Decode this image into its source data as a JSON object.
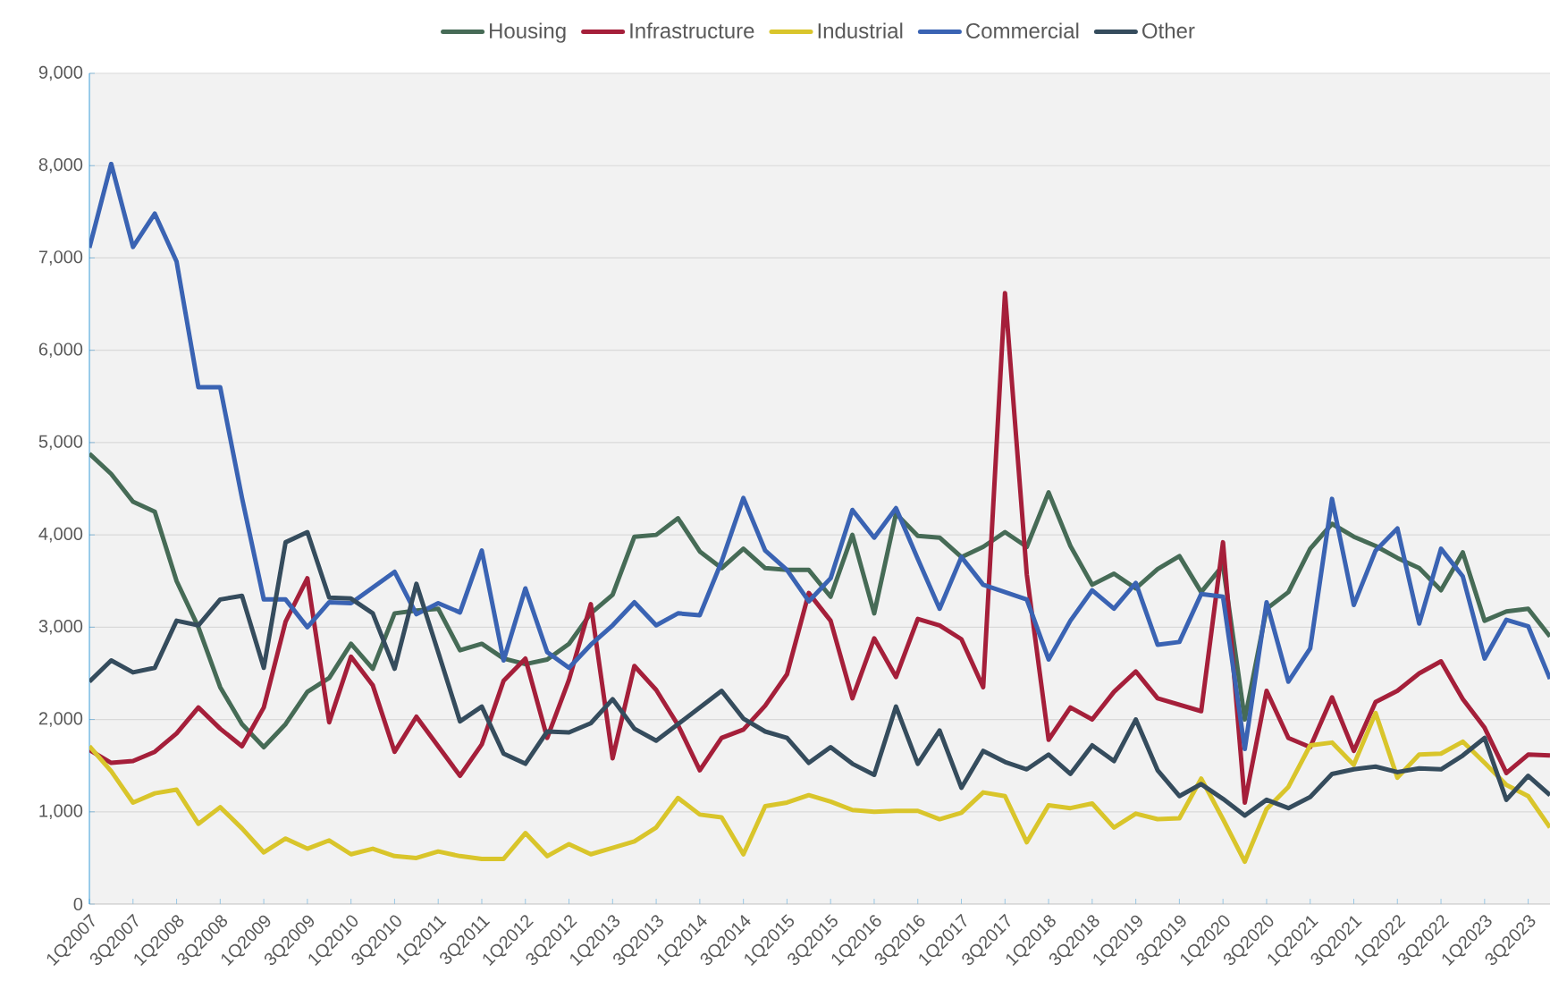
{
  "chart_data": {
    "type": "line",
    "categories": [
      "1Q2007",
      null,
      "3Q2007",
      null,
      "1Q2008",
      null,
      "3Q2008",
      null,
      "1Q2009",
      null,
      "3Q2009",
      null,
      "1Q2010",
      null,
      "3Q2010",
      null,
      "1Q2011",
      null,
      "3Q2011",
      null,
      "1Q2012",
      null,
      "3Q2012",
      null,
      "1Q2013",
      null,
      "3Q2013",
      null,
      "1Q2014",
      null,
      "3Q2014",
      null,
      "1Q2015",
      null,
      "3Q2015",
      null,
      "1Q2016",
      null,
      "3Q2016",
      null,
      "1Q2017",
      null,
      "3Q2017",
      null,
      "1Q2018",
      null,
      "3Q2018",
      null,
      "1Q2019",
      null,
      "3Q2019",
      null,
      "1Q2020",
      null,
      "3Q2020",
      null,
      "1Q2021",
      null,
      "3Q2021",
      null,
      "1Q2022",
      null,
      "3Q2022",
      null,
      "1Q2023",
      null,
      "3Q2023",
      null
    ],
    "series": [
      {
        "name": "Housing",
        "color": "#466b56",
        "values": [
          4880,
          4660,
          4360,
          4250,
          3500,
          3000,
          2350,
          1950,
          1700,
          1950,
          2300,
          2450,
          2820,
          2550,
          3150,
          3180,
          3200,
          2750,
          2820,
          2660,
          2600,
          2650,
          2820,
          3150,
          3350,
          3980,
          4000,
          4180,
          3820,
          3640,
          3850,
          3640,
          3620,
          3620,
          3330,
          4000,
          3150,
          4230,
          3990,
          3970,
          3760,
          3870,
          4030,
          3870,
          4460,
          3880,
          3460,
          3580,
          3420,
          3630,
          3770,
          3380,
          3670,
          2000,
          3200,
          3380,
          3850,
          4120,
          3980,
          3880,
          3750,
          3640,
          3400,
          3810,
          3070,
          3170,
          3200,
          2900
        ]
      },
      {
        "name": "Infrastructure",
        "color": "#a51f3a",
        "values": [
          1670,
          1530,
          1550,
          1650,
          1850,
          2130,
          1900,
          1710,
          2130,
          3060,
          3530,
          1970,
          2680,
          2370,
          1650,
          2030,
          1710,
          1390,
          1730,
          2420,
          2660,
          1800,
          2430,
          3250,
          1580,
          2580,
          2320,
          1940,
          1450,
          1800,
          1890,
          2150,
          2490,
          3370,
          3070,
          2230,
          2880,
          2460,
          3090,
          3020,
          2870,
          2350,
          6620,
          3570,
          1780,
          2130,
          2000,
          2300,
          2520,
          2230,
          2160,
          2090,
          3920,
          1100,
          2310,
          1800,
          1700,
          2240,
          1660,
          2190,
          2310,
          2500,
          2630,
          2220,
          1910,
          1420,
          1620,
          1610
        ]
      },
      {
        "name": "Industrial",
        "color": "#d9c52b",
        "values": [
          1710,
          1440,
          1100,
          1200,
          1240,
          870,
          1050,
          820,
          560,
          710,
          600,
          690,
          540,
          600,
          520,
          500,
          570,
          520,
          490,
          490,
          770,
          520,
          650,
          540,
          610,
          680,
          830,
          1150,
          970,
          940,
          540,
          1060,
          1100,
          1180,
          1110,
          1020,
          1000,
          1010,
          1010,
          920,
          990,
          1210,
          1170,
          670,
          1070,
          1040,
          1090,
          830,
          980,
          920,
          930,
          1360,
          920,
          460,
          1030,
          1270,
          1720,
          1750,
          1510,
          2070,
          1370,
          1620,
          1630,
          1760,
          1530,
          1290,
          1170,
          830
        ]
      },
      {
        "name": "Commercial",
        "color": "#3a63b3",
        "values": [
          7110,
          8020,
          7120,
          7480,
          6960,
          5600,
          5600,
          4400,
          3300,
          3300,
          3000,
          3270,
          3260,
          3430,
          3600,
          3140,
          3260,
          3160,
          3830,
          2640,
          3420,
          2730,
          2560,
          2810,
          3020,
          3270,
          3020,
          3150,
          3130,
          3710,
          4400,
          3830,
          3620,
          3280,
          3530,
          4270,
          3970,
          4290,
          3740,
          3200,
          3760,
          3460,
          3380,
          3300,
          2650,
          3070,
          3400,
          3200,
          3480,
          2810,
          2840,
          3360,
          3330,
          1680,
          3270,
          2410,
          2770,
          4390,
          3240,
          3830,
          4070,
          3040,
          3850,
          3550,
          2660,
          3080,
          3010,
          2440
        ]
      },
      {
        "name": "Other",
        "color": "#354c5d",
        "values": [
          2410,
          2640,
          2510,
          2560,
          3070,
          3020,
          3300,
          3340,
          2560,
          3920,
          4030,
          3320,
          3310,
          3150,
          2550,
          3470,
          2730,
          1980,
          2140,
          1630,
          1520,
          1870,
          1860,
          1960,
          2220,
          1900,
          1770,
          1950,
          2130,
          2310,
          2010,
          1870,
          1800,
          1530,
          1700,
          1520,
          1400,
          2140,
          1520,
          1880,
          1260,
          1660,
          1540,
          1460,
          1620,
          1410,
          1720,
          1550,
          2000,
          1450,
          1170,
          1300,
          1140,
          960,
          1130,
          1040,
          1160,
          1410,
          1460,
          1490,
          1430,
          1470,
          1460,
          1610,
          1800,
          1130,
          1390,
          1180
        ]
      }
    ],
    "ylim": [
      0,
      9000
    ],
    "yticks": [
      0,
      {
        "value": 1000,
        "label": "1,000"
      },
      {
        "value": 2000,
        "label": "2,000"
      },
      {
        "value": 3000,
        "label": "3,000"
      },
      {
        "value": 4000,
        "label": "4,000"
      },
      {
        "value": 5000,
        "label": "5,000"
      },
      {
        "value": 6000,
        "label": "6,000"
      },
      {
        "value": 7000,
        "label": "7,000"
      },
      {
        "value": 8000,
        "label": "8,000"
      },
      {
        "value": 9000,
        "label": "9,000"
      }
    ],
    "grid": "y",
    "legend": "top",
    "marker": "none",
    "line_style": "solid"
  }
}
